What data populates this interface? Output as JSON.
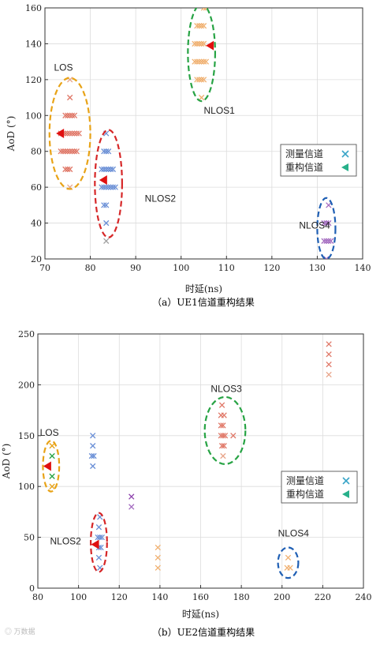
{
  "watermark": "◎ 万数据",
  "legend": {
    "measured": "测量信道",
    "reconstructed": "重构信道"
  },
  "chart_data": [
    {
      "type": "scatter",
      "caption": "（a）UE1信道重构结果",
      "xlabel": "时延(ns)",
      "ylabel": "AoD (°)",
      "xlim": [
        70,
        140
      ],
      "ylim": [
        20,
        160
      ],
      "xticks": [
        70,
        80,
        90,
        100,
        110,
        120,
        130,
        140
      ],
      "yticks": [
        20,
        40,
        60,
        80,
        100,
        120,
        140,
        160
      ],
      "grid": true,
      "legend_position": "right",
      "clusters": [
        {
          "label": "LOS",
          "color": "#e8a317",
          "center": [
            75.5,
            90
          ],
          "rx": 4.5,
          "ry": 31,
          "label_at": [
            72,
            125
          ]
        },
        {
          "label": "NLOS1",
          "color": "#27a344",
          "center": [
            104.5,
            135
          ],
          "rx": 3,
          "ry": 27,
          "label_at": [
            105,
            101
          ]
        },
        {
          "label": "NLOS2",
          "color": "#d62728",
          "center": [
            84,
            62
          ],
          "rx": 3,
          "ry": 30,
          "label_at": [
            92,
            52
          ]
        },
        {
          "label": "NLOS4",
          "color": "#1f5fb4",
          "center": [
            132,
            37
          ],
          "rx": 2,
          "ry": 17,
          "label_at": [
            126,
            37
          ]
        }
      ],
      "measured": [
        {
          "x": 75.5,
          "y": 120,
          "color": "#e8a58a"
        },
        {
          "x": 75.5,
          "y": 110,
          "color": "#e07868"
        },
        {
          "x": 74.5,
          "y": 100,
          "color": "#e07868"
        },
        {
          "x": 75,
          "y": 100,
          "color": "#e07868"
        },
        {
          "x": 75.5,
          "y": 100,
          "color": "#e07868"
        },
        {
          "x": 76,
          "y": 100,
          "color": "#e07868"
        },
        {
          "x": 76.5,
          "y": 100,
          "color": "#e07868"
        },
        {
          "x": 73.5,
          "y": 90,
          "color": "#e07868"
        },
        {
          "x": 74,
          "y": 90,
          "color": "#e07868"
        },
        {
          "x": 74.5,
          "y": 90,
          "color": "#e07868"
        },
        {
          "x": 75,
          "y": 90,
          "color": "#e07868"
        },
        {
          "x": 75.5,
          "y": 90,
          "color": "#e07868"
        },
        {
          "x": 76,
          "y": 90,
          "color": "#e07868"
        },
        {
          "x": 76.5,
          "y": 90,
          "color": "#e07868"
        },
        {
          "x": 77,
          "y": 90,
          "color": "#e07868"
        },
        {
          "x": 77.5,
          "y": 90,
          "color": "#e07868"
        },
        {
          "x": 73.5,
          "y": 80,
          "color": "#e07868"
        },
        {
          "x": 74,
          "y": 80,
          "color": "#e07868"
        },
        {
          "x": 74.5,
          "y": 80,
          "color": "#e07868"
        },
        {
          "x": 75,
          "y": 80,
          "color": "#e07868"
        },
        {
          "x": 75.5,
          "y": 80,
          "color": "#e07868"
        },
        {
          "x": 76,
          "y": 80,
          "color": "#e07868"
        },
        {
          "x": 76.5,
          "y": 80,
          "color": "#e07868"
        },
        {
          "x": 77,
          "y": 80,
          "color": "#e07868"
        },
        {
          "x": 74.5,
          "y": 70,
          "color": "#e07868"
        },
        {
          "x": 75,
          "y": 70,
          "color": "#e07868"
        },
        {
          "x": 75.5,
          "y": 70,
          "color": "#e07868"
        },
        {
          "x": 75.5,
          "y": 60,
          "color": "#e8a58a"
        },
        {
          "x": 105,
          "y": 160,
          "color": "#f0b070"
        },
        {
          "x": 105.5,
          "y": 160,
          "color": "#f0b070"
        },
        {
          "x": 103.5,
          "y": 150,
          "color": "#f0b070"
        },
        {
          "x": 104,
          "y": 150,
          "color": "#f0b070"
        },
        {
          "x": 104.5,
          "y": 150,
          "color": "#f0b070"
        },
        {
          "x": 105,
          "y": 150,
          "color": "#f0b070"
        },
        {
          "x": 103,
          "y": 140,
          "color": "#f0b070"
        },
        {
          "x": 103.5,
          "y": 140,
          "color": "#f0b070"
        },
        {
          "x": 104,
          "y": 140,
          "color": "#f0b070"
        },
        {
          "x": 104.5,
          "y": 140,
          "color": "#f0b070"
        },
        {
          "x": 105,
          "y": 140,
          "color": "#f0b070"
        },
        {
          "x": 103,
          "y": 130,
          "color": "#f0b070"
        },
        {
          "x": 103.5,
          "y": 130,
          "color": "#f0b070"
        },
        {
          "x": 104,
          "y": 130,
          "color": "#f0b070"
        },
        {
          "x": 104.5,
          "y": 130,
          "color": "#f0b070"
        },
        {
          "x": 105,
          "y": 130,
          "color": "#f0b070"
        },
        {
          "x": 105.5,
          "y": 130,
          "color": "#f0b070"
        },
        {
          "x": 103.5,
          "y": 120,
          "color": "#f0b070"
        },
        {
          "x": 104,
          "y": 120,
          "color": "#f0b070"
        },
        {
          "x": 104.5,
          "y": 120,
          "color": "#f0b070"
        },
        {
          "x": 105,
          "y": 120,
          "color": "#f0b070"
        },
        {
          "x": 104.5,
          "y": 110,
          "color": "#f0b070"
        },
        {
          "x": 83.5,
          "y": 90,
          "color": "#6a8fd6"
        },
        {
          "x": 83,
          "y": 80,
          "color": "#6a8fd6"
        },
        {
          "x": 83.5,
          "y": 80,
          "color": "#6a8fd6"
        },
        {
          "x": 84,
          "y": 80,
          "color": "#6a8fd6"
        },
        {
          "x": 82.5,
          "y": 70,
          "color": "#6a8fd6"
        },
        {
          "x": 83,
          "y": 70,
          "color": "#6a8fd6"
        },
        {
          "x": 83.5,
          "y": 70,
          "color": "#6a8fd6"
        },
        {
          "x": 84,
          "y": 70,
          "color": "#6a8fd6"
        },
        {
          "x": 84.5,
          "y": 70,
          "color": "#6a8fd6"
        },
        {
          "x": 85,
          "y": 70,
          "color": "#6a8fd6"
        },
        {
          "x": 82.5,
          "y": 60,
          "color": "#6a8fd6"
        },
        {
          "x": 83,
          "y": 60,
          "color": "#6a8fd6"
        },
        {
          "x": 83.5,
          "y": 60,
          "color": "#6a8fd6"
        },
        {
          "x": 84,
          "y": 60,
          "color": "#6a8fd6"
        },
        {
          "x": 84.5,
          "y": 60,
          "color": "#6a8fd6"
        },
        {
          "x": 85,
          "y": 60,
          "color": "#6a8fd6"
        },
        {
          "x": 85.5,
          "y": 60,
          "color": "#6a8fd6"
        },
        {
          "x": 83,
          "y": 50,
          "color": "#6a8fd6"
        },
        {
          "x": 83.5,
          "y": 50,
          "color": "#6a8fd6"
        },
        {
          "x": 83.5,
          "y": 40,
          "color": "#6a8fd6"
        },
        {
          "x": 83.5,
          "y": 30,
          "color": "#a0a0a0"
        },
        {
          "x": 132.5,
          "y": 50,
          "color": "#a46cc0"
        },
        {
          "x": 131.5,
          "y": 40,
          "color": "#a46cc0"
        },
        {
          "x": 132,
          "y": 40,
          "color": "#a46cc0"
        },
        {
          "x": 132.5,
          "y": 40,
          "color": "#a46cc0"
        },
        {
          "x": 131.5,
          "y": 30,
          "color": "#a46cc0"
        },
        {
          "x": 132,
          "y": 30,
          "color": "#a46cc0"
        },
        {
          "x": 132.5,
          "y": 30,
          "color": "#a46cc0"
        },
        {
          "x": 133,
          "y": 30,
          "color": "#a46cc0"
        },
        {
          "x": 132,
          "y": 20,
          "color": "#a46cc0"
        }
      ],
      "reconstructed": [
        {
          "x": 73.5,
          "y": 90,
          "color": "#e01010"
        },
        {
          "x": 106.5,
          "y": 139,
          "color": "#e01010"
        },
        {
          "x": 83,
          "y": 64,
          "color": "#e01010"
        }
      ]
    },
    {
      "type": "scatter",
      "caption": "（b）UE2信道重构结果",
      "xlabel": "时延(ns)",
      "ylabel": "AoD (°)",
      "xlim": [
        80,
        240
      ],
      "ylim": [
        0,
        250
      ],
      "xticks": [
        80,
        100,
        120,
        140,
        160,
        180,
        200,
        220,
        240
      ],
      "yticks": [
        0,
        50,
        100,
        150,
        200,
        250
      ],
      "grid": true,
      "legend_position": "right",
      "clusters": [
        {
          "label": "LOS",
          "color": "#e8a317",
          "center": [
            86.5,
            120
          ],
          "rx": 4,
          "ry": 25,
          "label_at": [
            81,
            150
          ]
        },
        {
          "label": "NLOS3",
          "color": "#27a344",
          "center": [
            172,
            155
          ],
          "rx": 10,
          "ry": 33,
          "label_at": [
            165,
            193
          ]
        },
        {
          "label": "NLOS2",
          "color": "#d62728",
          "center": [
            110,
            45
          ],
          "rx": 4,
          "ry": 29,
          "label_at": [
            86,
            43
          ]
        },
        {
          "label": "NLOS4",
          "color": "#1f5fb4",
          "center": [
            203,
            25
          ],
          "rx": 5,
          "ry": 15,
          "label_at": [
            198,
            51
          ]
        }
      ],
      "measured": [
        {
          "x": 87,
          "y": 140,
          "color": "#e8a317"
        },
        {
          "x": 87,
          "y": 130,
          "color": "#27a344"
        },
        {
          "x": 87,
          "y": 110,
          "color": "#27a344"
        },
        {
          "x": 87,
          "y": 100,
          "color": "#e8a317"
        },
        {
          "x": 107,
          "y": 150,
          "color": "#6a8fd6"
        },
        {
          "x": 107,
          "y": 140,
          "color": "#6a8fd6"
        },
        {
          "x": 106.5,
          "y": 130,
          "color": "#6a8fd6"
        },
        {
          "x": 107.5,
          "y": 130,
          "color": "#6a8fd6"
        },
        {
          "x": 107,
          "y": 120,
          "color": "#6a8fd6"
        },
        {
          "x": 110.5,
          "y": 70,
          "color": "#6a8fd6"
        },
        {
          "x": 110,
          "y": 60,
          "color": "#6a8fd6"
        },
        {
          "x": 109.5,
          "y": 50,
          "color": "#6a8fd6"
        },
        {
          "x": 110.5,
          "y": 50,
          "color": "#6a8fd6"
        },
        {
          "x": 111.5,
          "y": 50,
          "color": "#6a8fd6"
        },
        {
          "x": 110,
          "y": 40,
          "color": "#6a8fd6"
        },
        {
          "x": 111,
          "y": 40,
          "color": "#6a8fd6"
        },
        {
          "x": 110,
          "y": 30,
          "color": "#6a8fd6"
        },
        {
          "x": 110.5,
          "y": 20,
          "color": "#6a8fd6"
        },
        {
          "x": 126,
          "y": 90,
          "color": "#8e44ad"
        },
        {
          "x": 126,
          "y": 80,
          "color": "#a46cc0"
        },
        {
          "x": 139,
          "y": 40,
          "color": "#f0b070"
        },
        {
          "x": 139,
          "y": 30,
          "color": "#f0b070"
        },
        {
          "x": 139,
          "y": 20,
          "color": "#f0b070"
        },
        {
          "x": 170.5,
          "y": 180,
          "color": "#e07868"
        },
        {
          "x": 170,
          "y": 170,
          "color": "#e07868"
        },
        {
          "x": 171.5,
          "y": 170,
          "color": "#e07868"
        },
        {
          "x": 170,
          "y": 160,
          "color": "#e07868"
        },
        {
          "x": 171,
          "y": 160,
          "color": "#e07868"
        },
        {
          "x": 170,
          "y": 150,
          "color": "#e07868"
        },
        {
          "x": 171,
          "y": 150,
          "color": "#e07868"
        },
        {
          "x": 172,
          "y": 150,
          "color": "#e07868"
        },
        {
          "x": 176,
          "y": 150,
          "color": "#e07868"
        },
        {
          "x": 170.5,
          "y": 140,
          "color": "#e07868"
        },
        {
          "x": 171.5,
          "y": 140,
          "color": "#e07868"
        },
        {
          "x": 171,
          "y": 130,
          "color": "#e8a58a"
        },
        {
          "x": 203,
          "y": 30,
          "color": "#f0b070"
        },
        {
          "x": 202.5,
          "y": 20,
          "color": "#f0b070"
        },
        {
          "x": 204,
          "y": 20,
          "color": "#f0b070"
        },
        {
          "x": 223,
          "y": 240,
          "color": "#e07868"
        },
        {
          "x": 223,
          "y": 230,
          "color": "#e07868"
        },
        {
          "x": 223,
          "y": 220,
          "color": "#e07868"
        },
        {
          "x": 223,
          "y": 210,
          "color": "#e8a58a"
        }
      ],
      "reconstructed": [
        {
          "x": 85,
          "y": 120,
          "color": "#e01010"
        },
        {
          "x": 108.5,
          "y": 43,
          "color": "#e01010"
        }
      ]
    }
  ]
}
